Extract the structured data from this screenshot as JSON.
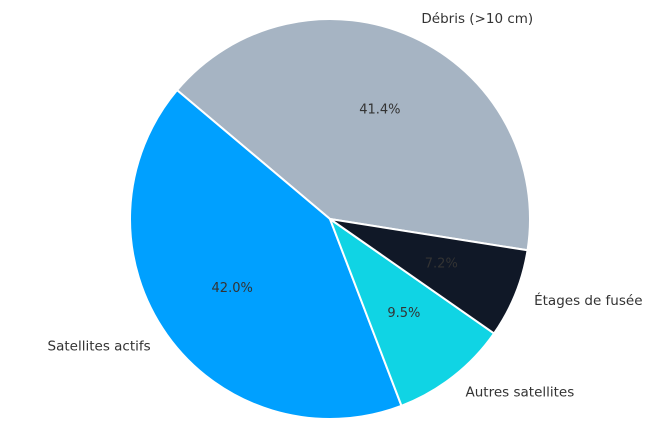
{
  "figure": {
    "background": "#ffffff"
  },
  "chart_data": {
    "type": "pie",
    "title": "",
    "legend": "none",
    "slices": [
      {
        "label": "Débris (>10 cm)",
        "value": 41.4,
        "pct_label": "41.4%",
        "color": "#a6b4c3"
      },
      {
        "label": "Satellites actifs",
        "value": 42.0,
        "pct_label": "42.0%",
        "color": "#00a0ff"
      },
      {
        "label": "Autres satellites",
        "value": 9.5,
        "pct_label": "9.5%",
        "color": "#10d4e4"
      },
      {
        "label": "Étages de fusée",
        "value": 7.2,
        "pct_label": "7.2%",
        "color": "#101827"
      }
    ],
    "start_angle_deg": -9,
    "direction": "counterclockwise",
    "label_radius_ratio": 1.1,
    "pct_radius_ratio": 0.6,
    "edge_color": "#ffffff",
    "text_color": "#333333"
  }
}
